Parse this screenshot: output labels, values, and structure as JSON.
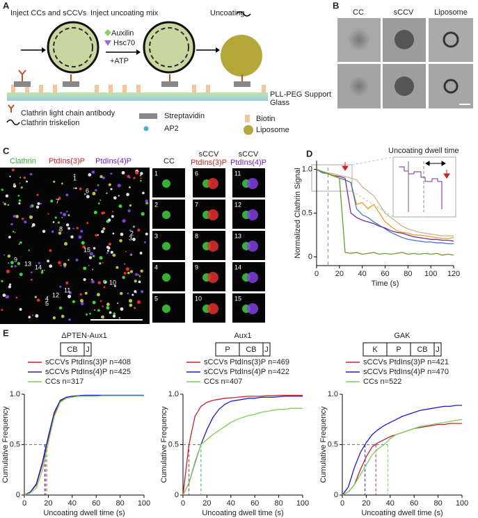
{
  "panel_letters": [
    "A",
    "B",
    "C",
    "D",
    "E"
  ],
  "panel_a": {
    "steps": [
      "Inject CCs and sCCVs",
      "Inject uncoating mix",
      "Uncoating"
    ],
    "reagents": [
      "Auxilin",
      "Hsc70",
      "+ATP"
    ],
    "surface": [
      "PLL-PEG Support",
      "Glass"
    ],
    "legend": [
      "Clathrin light chain antibody",
      "Streptavidin",
      "Biotin",
      "Clathrin triskelion",
      "AP2",
      "Liposome"
    ]
  },
  "panel_b": {
    "columns": [
      "CC",
      "sCCV",
      "Liposome"
    ]
  },
  "panel_c": {
    "channels": [
      "Clathrin",
      "PtdIns(3)P",
      "PtdIns(4)P"
    ],
    "columns": [
      "CC",
      "sCCV",
      "PtdIns(3)P",
      "sCCV",
      "PtdIns(4)P"
    ],
    "spots": [
      "1",
      "2",
      "3",
      "4",
      "5",
      "6",
      "7",
      "8",
      "9",
      "10",
      "11",
      "12",
      "13",
      "14",
      "15"
    ]
  },
  "chart_data": [
    {
      "type": "line",
      "ylabel": "Normalized Clathrin Signal",
      "xlabel": "Time (s)",
      "annotation": "Uncoating dwell time",
      "marker_x": 10,
      "arrow_x": 25,
      "x": [
        0,
        5,
        10,
        15,
        20,
        25,
        30,
        35,
        40,
        45,
        50,
        55,
        60,
        65,
        70,
        75,
        80,
        85,
        90,
        95,
        100,
        105,
        110,
        115,
        120
      ],
      "xlim": [
        0,
        120
      ],
      "xticks": [
        0,
        20,
        40,
        60,
        80,
        100,
        120
      ],
      "ylim": [
        -0.1,
        1.1
      ],
      "yticks": [
        0,
        0.5,
        {
          "value": 1,
          "label": "1.0"
        }
      ],
      "series": [
        {
          "color": "#c9b68e",
          "values": [
            1,
            0.98,
            0.96,
            0.95,
            0.93,
            0.92,
            0.9,
            0.88,
            0.8,
            0.75,
            0.7,
            0.6,
            0.5,
            0.45,
            0.4,
            0.35,
            0.32,
            0.3,
            0.28,
            0.27,
            0.26,
            0.25,
            0.24,
            0.24,
            0.24
          ]
        },
        {
          "color": "#e8a020",
          "values": [
            1,
            0.97,
            0.95,
            0.92,
            0.9,
            0.88,
            0.85,
            0.6,
            0.62,
            0.55,
            0.6,
            0.5,
            0.4,
            0.35,
            0.3,
            0.28,
            0.27,
            0.25,
            0.25,
            0.24,
            0.23,
            0.22,
            0.21,
            0.21,
            0.22
          ]
        },
        {
          "color": "#3a7ac8",
          "values": [
            1,
            0.96,
            0.95,
            0.93,
            0.9,
            0.88,
            0.85,
            0.55,
            0.48,
            0.45,
            0.4,
            0.36,
            0.32,
            0.28,
            0.25,
            0.22,
            0.2,
            0.19,
            0.18,
            0.17,
            0.17,
            0.16,
            0.16,
            0.15,
            0.15
          ]
        },
        {
          "color": "#7a2a9a",
          "values": [
            1,
            0.97,
            0.95,
            0.93,
            0.92,
            0.9,
            0.5,
            0.45,
            0.42,
            0.4,
            0.38,
            0.35,
            0.33,
            0.3,
            0.28,
            0.27,
            0.25,
            0.23,
            0.22,
            0.21,
            0.2,
            0.2,
            0.19,
            0.19,
            0.18
          ]
        },
        {
          "color": "#6a9a2a",
          "values": [
            1,
            0.97,
            0.95,
            0.93,
            0.9,
            0.05,
            0.04,
            0.05,
            0.03,
            0.04,
            0.05,
            0.03,
            0.04,
            0.03,
            0.04,
            0.05,
            0.03,
            0.04,
            0.03,
            0.04,
            0.03,
            0.04,
            0.02,
            0.03,
            0.02
          ]
        }
      ]
    },
    {
      "type": "line",
      "title": "ΔPTEN-Aux1",
      "domains": [
        "CB",
        "J"
      ],
      "ylabel": "Cumulative Frequency",
      "xlabel": "Uncoating dwell time (s)",
      "reference_y": 0.5,
      "x": [
        0,
        5,
        10,
        15,
        20,
        25,
        30,
        35,
        40,
        45,
        50,
        55,
        60,
        65,
        70,
        75,
        80,
        85,
        90,
        95,
        100
      ],
      "xlim": [
        0,
        100
      ],
      "xticks": [
        0,
        20,
        40,
        60,
        80,
        100
      ],
      "ylim": [
        0,
        1
      ],
      "yticks": [
        0,
        0.5,
        {
          "value": 1,
          "label": "1.0"
        }
      ],
      "series": [
        {
          "name": "sCCVs PtdIns(3)P n=408",
          "color": "#c8202a",
          "median": 18,
          "values": [
            0,
            0.03,
            0.1,
            0.3,
            0.56,
            0.8,
            0.93,
            0.97,
            0.98,
            0.985,
            0.99,
            0.99,
            0.99,
            0.99,
            0.99,
            0.99,
            0.99,
            0.99,
            0.99,
            0.99,
            0.99
          ]
        },
        {
          "name": "sCCVs PtdIns(4)P n=425",
          "color": "#1a1ad0",
          "median": 17,
          "values": [
            0,
            0.03,
            0.11,
            0.32,
            0.58,
            0.82,
            0.94,
            0.97,
            0.98,
            0.985,
            0.99,
            0.99,
            0.99,
            0.99,
            0.99,
            0.99,
            0.99,
            0.99,
            0.99,
            0.99,
            0.99
          ]
        },
        {
          "name": "CCs n=317",
          "color": "#7ccf5a",
          "median": 19,
          "values": [
            0,
            0.02,
            0.07,
            0.24,
            0.52,
            0.78,
            0.92,
            0.96,
            0.97,
            0.98,
            0.98,
            0.98,
            0.98,
            0.985,
            0.985,
            0.985,
            0.985,
            0.985,
            0.985,
            0.985,
            0.985
          ]
        }
      ]
    },
    {
      "type": "line",
      "title": "Aux1",
      "domains": [
        "P",
        "CB",
        "J"
      ],
      "ylabel": "Cumulative Frequency",
      "xlabel": "Uncoating dwell time (s)",
      "reference_y": 0.5,
      "x": [
        0,
        5,
        10,
        15,
        20,
        25,
        30,
        35,
        40,
        45,
        50,
        55,
        60,
        65,
        70,
        75,
        80,
        85,
        90,
        95,
        100
      ],
      "xlim": [
        0,
        100
      ],
      "xticks": [
        0,
        20,
        40,
        60,
        80,
        100
      ],
      "ylim": [
        0,
        1
      ],
      "yticks": [
        0,
        0.5,
        {
          "value": 1,
          "label": "1.0"
        }
      ],
      "series": [
        {
          "name": "sCCVs PtdIns(3)P n=469",
          "color": "#c8202a",
          "median": 5,
          "values": [
            0,
            0.5,
            0.78,
            0.88,
            0.92,
            0.94,
            0.95,
            0.96,
            0.965,
            0.97,
            0.975,
            0.98,
            0.98,
            0.98,
            0.985,
            0.985,
            0.99,
            0.99,
            0.99,
            0.99,
            0.99
          ]
        },
        {
          "name": "sCCVs PtdIns(4)P n=422",
          "color": "#1a1ad0",
          "median": 15,
          "values": [
            0,
            0.12,
            0.32,
            0.5,
            0.65,
            0.77,
            0.85,
            0.9,
            0.93,
            0.94,
            0.95,
            0.96,
            0.96,
            0.97,
            0.97,
            0.97,
            0.975,
            0.98,
            0.98,
            0.98,
            0.98
          ]
        },
        {
          "name": "CCs n=407",
          "color": "#7ccf5a",
          "median": 15,
          "values": [
            0,
            0.12,
            0.33,
            0.5,
            0.55,
            0.6,
            0.64,
            0.68,
            0.72,
            0.75,
            0.77,
            0.79,
            0.8,
            0.82,
            0.83,
            0.84,
            0.85,
            0.85,
            0.86,
            0.86,
            0.86
          ]
        }
      ]
    },
    {
      "type": "line",
      "title": "GAK",
      "domains": [
        "K",
        "P",
        "CB",
        "J"
      ],
      "ylabel": "Cumulative Frequency",
      "xlabel": "Uncoating dwell time (s)",
      "reference_y": 0.5,
      "x": [
        0,
        5,
        10,
        15,
        20,
        25,
        30,
        35,
        40,
        45,
        50,
        55,
        60,
        65,
        70,
        75,
        80,
        85,
        90,
        95,
        100
      ],
      "xlim": [
        0,
        100
      ],
      "xticks": [
        0,
        20,
        40,
        60,
        80,
        100
      ],
      "ylim": [
        0,
        1
      ],
      "yticks": [
        0,
        0.5,
        {
          "value": 1,
          "label": "1.0"
        }
      ],
      "series": [
        {
          "name": "sCCVs PtdIns(3)P n=421",
          "color": "#c8202a",
          "median": 28,
          "values": [
            0,
            0.03,
            0.1,
            0.25,
            0.38,
            0.48,
            0.52,
            0.55,
            0.58,
            0.6,
            0.62,
            0.64,
            0.66,
            0.67,
            0.68,
            0.69,
            0.7,
            0.7,
            0.71,
            0.71,
            0.71
          ]
        },
        {
          "name": "sCCVs PtdIns(4)P n=470",
          "color": "#1a1ad0",
          "median": 19,
          "values": [
            0,
            0.08,
            0.27,
            0.42,
            0.52,
            0.6,
            0.65,
            0.69,
            0.72,
            0.75,
            0.78,
            0.8,
            0.82,
            0.84,
            0.85,
            0.86,
            0.87,
            0.88,
            0.88,
            0.89,
            0.89
          ]
        },
        {
          "name": "CCs n=522",
          "color": "#7ccf5a",
          "median": 38,
          "values": [
            0,
            0.03,
            0.1,
            0.2,
            0.3,
            0.4,
            0.46,
            0.5,
            0.56,
            0.6,
            0.62,
            0.64,
            0.66,
            0.68,
            0.69,
            0.7,
            0.71,
            0.72,
            0.73,
            0.74,
            0.75
          ]
        }
      ]
    }
  ]
}
